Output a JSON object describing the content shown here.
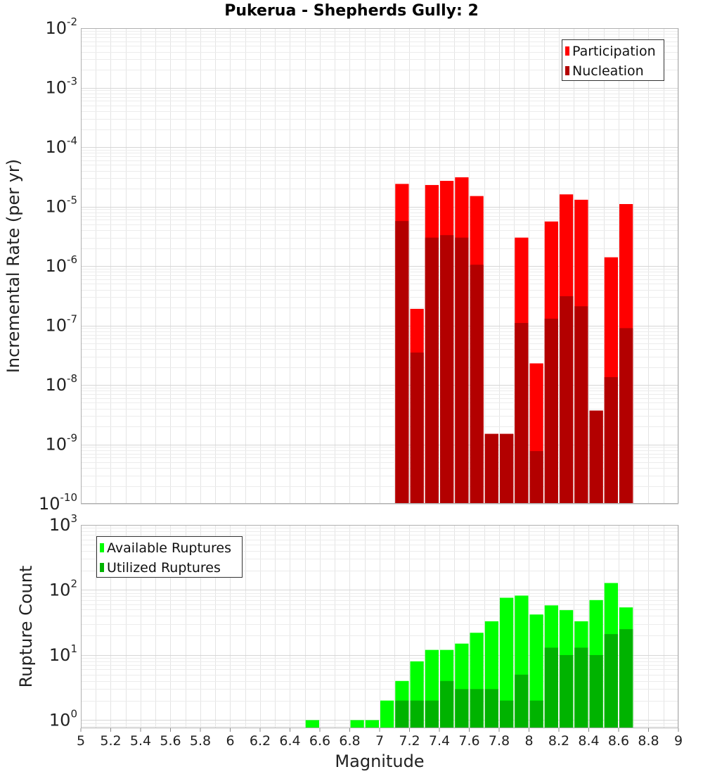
{
  "chart_data": [
    {
      "type": "bar",
      "title": "Pukerua - Shepherds Gully: 2",
      "xlabel": "",
      "ylabel": "Incremental Rate (per yr)",
      "yscale": "log",
      "ylim": [
        1e-10,
        0.01
      ],
      "xlim": [
        5,
        9
      ],
      "bin_width": 0.1,
      "y_ticks": [
        {
          "base": "10",
          "exp": "-2"
        },
        {
          "base": "10",
          "exp": "-3"
        },
        {
          "base": "10",
          "exp": "-4"
        },
        {
          "base": "10",
          "exp": "-5"
        },
        {
          "base": "10",
          "exp": "-6"
        },
        {
          "base": "10",
          "exp": "-7"
        },
        {
          "base": "10",
          "exp": "-8"
        },
        {
          "base": "10",
          "exp": "-9"
        },
        {
          "base": "10",
          "exp": "-10"
        }
      ],
      "legend": {
        "position": "top-right",
        "entries": [
          "Participation",
          "Nucleation"
        ]
      },
      "grid": true,
      "x": [
        7.15,
        7.25,
        7.35,
        7.45,
        7.55,
        7.65,
        7.75,
        7.85,
        7.95,
        8.05,
        8.15,
        8.25,
        8.35,
        8.45,
        8.55,
        8.65
      ],
      "series": [
        {
          "name": "Participation",
          "color": "#ff0000",
          "values": [
            2.4e-05,
            1.9e-07,
            2.3e-05,
            2.7e-05,
            3.1e-05,
            1.5e-05,
            1.5e-09,
            1.5e-09,
            3e-06,
            2.3e-08,
            5.6e-06,
            1.6e-05,
            1.3e-05,
            3.7e-09,
            1.4e-06,
            1.1e-05
          ]
        },
        {
          "name": "Nucleation",
          "color": "#b30000",
          "values": [
            5.7e-06,
            3.5e-08,
            3e-06,
            3.3e-06,
            3e-06,
            1.05e-06,
            1.5e-09,
            1.5e-09,
            1.1e-07,
            7.7e-10,
            1.3e-07,
            3.1e-07,
            2.1e-07,
            3.7e-09,
            1.35e-08,
            9e-08
          ]
        }
      ]
    },
    {
      "type": "bar",
      "title": "",
      "xlabel": "Magnitude",
      "ylabel": "Rupture Count",
      "yscale": "log",
      "ylim": [
        0.75,
        1000
      ],
      "xlim": [
        5,
        9
      ],
      "bin_width": 0.1,
      "x_ticks": [
        "5",
        "5.2",
        "5.4",
        "5.6",
        "5.8",
        "6",
        "6.2",
        "6.4",
        "6.6",
        "6.8",
        "7",
        "7.2",
        "7.4",
        "7.6",
        "7.8",
        "8",
        "8.2",
        "8.4",
        "8.6",
        "8.8",
        "9"
      ],
      "y_ticks": [
        {
          "base": "10",
          "exp": "3"
        },
        {
          "base": "10",
          "exp": "2"
        },
        {
          "base": "10",
          "exp": "1"
        },
        {
          "base": "10",
          "exp": "0"
        }
      ],
      "legend": {
        "position": "top-left",
        "entries": [
          "Available Ruptures",
          "Utilized Ruptures"
        ]
      },
      "grid": true,
      "x": [
        6.55,
        6.85,
        6.95,
        7.05,
        7.15,
        7.25,
        7.35,
        7.45,
        7.55,
        7.65,
        7.75,
        7.85,
        7.95,
        8.05,
        8.15,
        8.25,
        8.35,
        8.45,
        8.55,
        8.65
      ],
      "series": [
        {
          "name": "Available Ruptures",
          "color": "#00ff00",
          "values": [
            1,
            1,
            1,
            2,
            4,
            8,
            12,
            12,
            15,
            22,
            33,
            76,
            82,
            42,
            58,
            49,
            33,
            70,
            128,
            54
          ]
        },
        {
          "name": "Utilized Ruptures",
          "color": "#00b300",
          "values": [
            0,
            0,
            0,
            0,
            2,
            2,
            2,
            4,
            3,
            3,
            3,
            2,
            5,
            2,
            13,
            10,
            13,
            10,
            21,
            25
          ]
        }
      ]
    }
  ]
}
